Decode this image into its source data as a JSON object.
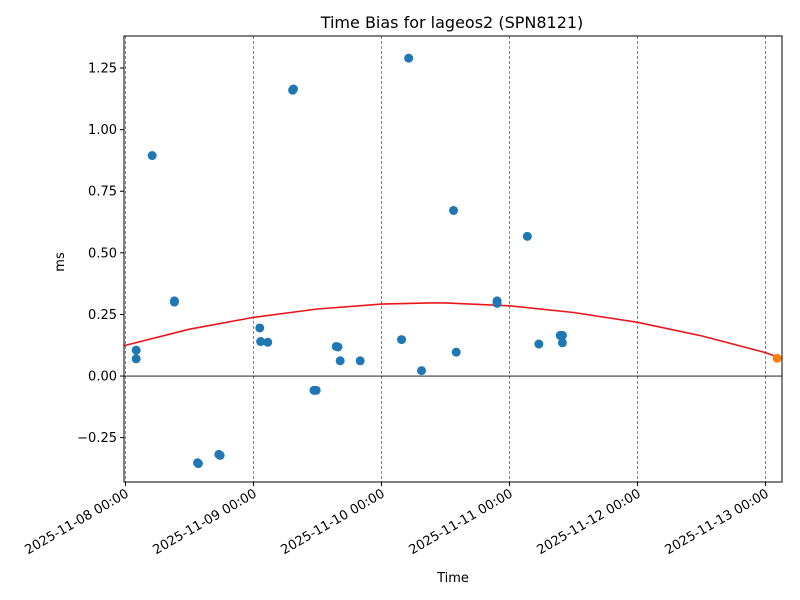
{
  "chart_data": {
    "type": "scatter",
    "title": "Time Bias for lageos2 (SPN8121)",
    "xlabel": "Time",
    "ylabel": "ms",
    "xlim": [
      "2025-11-07 23:43",
      "2025-11-13 03:05"
    ],
    "ylim": [
      -0.43,
      1.38
    ],
    "grid": "vertical dashed at day boundaries",
    "x_ticks": [
      "2025-11-08 00:00",
      "2025-11-09 00:00",
      "2025-11-10 00:00",
      "2025-11-11 00:00",
      "2025-11-12 00:00",
      "2025-11-13 00:00"
    ],
    "y_ticks": [
      -0.25,
      0.0,
      0.25,
      0.5,
      0.75,
      1.0,
      1.25
    ],
    "y_tick_labels": [
      "−0.25",
      "0.00",
      "0.25",
      "0.50",
      "0.75",
      "1.00",
      "1.25"
    ],
    "colors": {
      "points": "#1f77b4",
      "fit": "#e8161b",
      "last_point": "#ff7f0e",
      "zero_line": "#000000",
      "grid": "#1f77b4"
    },
    "series": [
      {
        "type": "scatter",
        "points": [
          {
            "x": "2025-11-08 02:00",
            "y": 0.105
          },
          {
            "x": "2025-11-08 02:00",
            "y": 0.07
          },
          {
            "x": "2025-11-08 05:00",
            "y": 0.895
          },
          {
            "x": "2025-11-08 09:10",
            "y": 0.3
          },
          {
            "x": "2025-11-08 09:10",
            "y": 0.305
          },
          {
            "x": "2025-11-08 13:30",
            "y": -0.352
          },
          {
            "x": "2025-11-08 13:40",
            "y": -0.355
          },
          {
            "x": "2025-11-08 17:30",
            "y": -0.318
          },
          {
            "x": "2025-11-08 17:45",
            "y": -0.322
          },
          {
            "x": "2025-11-09 01:10",
            "y": 0.195
          },
          {
            "x": "2025-11-09 01:20",
            "y": 0.14
          },
          {
            "x": "2025-11-09 02:40",
            "y": 0.137
          },
          {
            "x": "2025-11-09 07:20",
            "y": 1.16
          },
          {
            "x": "2025-11-09 07:30",
            "y": 1.165
          },
          {
            "x": "2025-11-09 11:20",
            "y": -0.058
          },
          {
            "x": "2025-11-09 11:45",
            "y": -0.058
          },
          {
            "x": "2025-11-09 15:30",
            "y": 0.12
          },
          {
            "x": "2025-11-09 15:50",
            "y": 0.118
          },
          {
            "x": "2025-11-09 16:15",
            "y": 0.062
          },
          {
            "x": "2025-11-09 20:00",
            "y": 0.062
          },
          {
            "x": "2025-11-10 03:45",
            "y": 0.148
          },
          {
            "x": "2025-11-10 05:05",
            "y": 1.29
          },
          {
            "x": "2025-11-10 07:30",
            "y": 0.022
          },
          {
            "x": "2025-11-10 13:30",
            "y": 0.672
          },
          {
            "x": "2025-11-10 14:00",
            "y": 0.097
          },
          {
            "x": "2025-11-10 21:40",
            "y": 0.305
          },
          {
            "x": "2025-11-10 21:40",
            "y": 0.295
          },
          {
            "x": "2025-11-11 03:20",
            "y": 0.567
          },
          {
            "x": "2025-11-11 05:30",
            "y": 0.13
          },
          {
            "x": "2025-11-11 09:30",
            "y": 0.165
          },
          {
            "x": "2025-11-11 09:55",
            "y": 0.165
          },
          {
            "x": "2025-11-11 09:55",
            "y": 0.135
          }
        ]
      },
      {
        "type": "line",
        "points": [
          {
            "x": "2025-11-07 23:43",
            "y": 0.123
          },
          {
            "x": "2025-11-08 12:00",
            "y": 0.19
          },
          {
            "x": "2025-11-09 00:00",
            "y": 0.238
          },
          {
            "x": "2025-11-09 12:00",
            "y": 0.272
          },
          {
            "x": "2025-11-10 00:00",
            "y": 0.292
          },
          {
            "x": "2025-11-10 09:00",
            "y": 0.297
          },
          {
            "x": "2025-11-10 12:00",
            "y": 0.297
          },
          {
            "x": "2025-11-11 00:00",
            "y": 0.285
          },
          {
            "x": "2025-11-11 12:00",
            "y": 0.258
          },
          {
            "x": "2025-11-12 00:00",
            "y": 0.218
          },
          {
            "x": "2025-11-12 12:00",
            "y": 0.163
          },
          {
            "x": "2025-11-13 00:00",
            "y": 0.095
          },
          {
            "x": "2025-11-13 03:05",
            "y": 0.07
          }
        ]
      },
      {
        "type": "scatter",
        "points": [
          {
            "x": "2025-11-13 02:10",
            "y": 0.072
          }
        ]
      }
    ]
  }
}
